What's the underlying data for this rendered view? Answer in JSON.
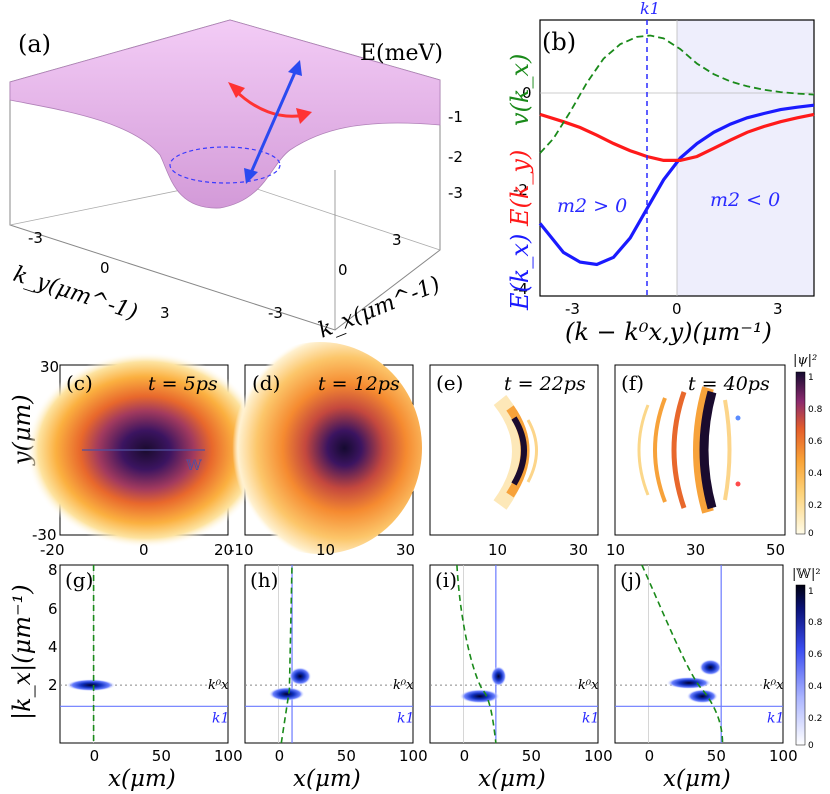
{
  "panel_a": {
    "label": "(a)",
    "z_axis_label": "E(meV)",
    "z_ticks": [
      "-1",
      "-2",
      "-3"
    ],
    "ky_axis_label": "k_y(μm^-1)",
    "ky_ticks": [
      "-3",
      "0",
      "3"
    ],
    "kx_axis_label": "k_x(μm^-1)",
    "kx_ticks": [
      "-3",
      "0",
      "3"
    ],
    "colors": {
      "surface": "#e8b4ee",
      "red_arrow": "#ff3333",
      "blue_arrow": "#2a4af0"
    }
  },
  "panel_b": {
    "label": "(b)",
    "k1_label": "k1",
    "ylabel_kx": "E(k_x)",
    "ylabel_ky": "E(k_y)",
    "ylabel_v": "v(k_x)",
    "xlabel": "(k − k⁰x,y)(μm⁻¹)",
    "y_ticks": [
      "0",
      "-2",
      "-4"
    ],
    "x_ticks": [
      "-3",
      "0",
      "3"
    ],
    "annotation_left": "m2 > 0",
    "annotation_right": "m2 < 0",
    "chart_data": {
      "type": "line",
      "xlim": [
        -4.2,
        4
      ],
      "ylim": [
        -4.1,
        1.6
      ],
      "k1": -0.9,
      "series": [
        {
          "name": "E(k_x)",
          "color": "#1a1aff",
          "x": [
            -4.2,
            -3.5,
            -3,
            -2.5,
            -2,
            -1.5,
            -1,
            -0.5,
            0,
            0.5,
            1,
            1.5,
            2,
            2.5,
            3,
            3.5,
            4
          ],
          "y": [
            -2.6,
            -3.2,
            -3.4,
            -3.45,
            -3.3,
            -2.9,
            -2.3,
            -1.7,
            -1.25,
            -0.95,
            -0.72,
            -0.55,
            -0.42,
            -0.33,
            -0.25,
            -0.2,
            -0.16
          ]
        },
        {
          "name": "E(k_y)",
          "color": "#ff1a1a",
          "x": [
            -4.2,
            -3.5,
            -3,
            -2.5,
            -2,
            -1.5,
            -1,
            -0.5,
            0,
            0.5,
            1,
            1.5,
            2,
            2.5,
            3,
            3.5,
            4
          ],
          "y": [
            -0.35,
            -0.5,
            -0.62,
            -0.78,
            -0.95,
            -1.1,
            -1.22,
            -1.3,
            -1.3,
            -1.22,
            -1.05,
            -0.88,
            -0.72,
            -0.6,
            -0.5,
            -0.42,
            -0.35
          ]
        },
        {
          "name": "v(k_x)",
          "color": "#1a8a1a",
          "x": [
            -4.2,
            -3.8,
            -3.3,
            -2.8,
            -2.3,
            -1.8,
            -1.3,
            -0.9,
            -0.5,
            0,
            0.5,
            1,
            1.5,
            2,
            2.5,
            3,
            3.5,
            4
          ],
          "y": [
            -1.15,
            -0.85,
            -0.3,
            0.3,
            0.8,
            1.1,
            1.25,
            1.28,
            1.22,
            1.0,
            0.7,
            0.48,
            0.33,
            0.23,
            0.16,
            0.11,
            0.08,
            0.06
          ]
        }
      ]
    }
  },
  "row_psi": {
    "ylabel": "y(μm)",
    "y_ticks": [
      "30",
      "0",
      "-30"
    ],
    "colorbar_label": "|ψ|²",
    "colorbar_ticks": [
      "1",
      "0.8",
      "0.6",
      "0.4",
      "0.2",
      "0"
    ],
    "panels": [
      {
        "label": "(c)",
        "time": "t = 5ps",
        "x_ticks": [
          "-20",
          "0",
          "20"
        ],
        "W_label": "𝕎"
      },
      {
        "label": "(d)",
        "time": "t = 12ps",
        "x_ticks": [
          "-10",
          "10",
          "30"
        ]
      },
      {
        "label": "(e)",
        "time": "t = 22ps",
        "x_ticks": [
          "10",
          "30"
        ]
      },
      {
        "label": "(f)",
        "time": "t = 40ps",
        "x_ticks": [
          "10",
          "30",
          "50"
        ]
      }
    ]
  },
  "row_w": {
    "ylabel": "|k_x|(μm⁻¹)",
    "y_ticks": [
      "8",
      "6",
      "4",
      "2"
    ],
    "xlabel": "x(μm)",
    "x_ticks": [
      "0",
      "50",
      "100"
    ],
    "colorbar_label": "|𝕎|²",
    "colorbar_ticks": [
      "1",
      "0.8",
      "0.6",
      "0.4",
      "0.2",
      "0"
    ],
    "kx0_label": "k⁰x",
    "k1_label": "k1",
    "panels": [
      {
        "label": "(g)"
      },
      {
        "label": "(h)"
      },
      {
        "label": "(i)"
      },
      {
        "label": "(j)"
      }
    ]
  }
}
